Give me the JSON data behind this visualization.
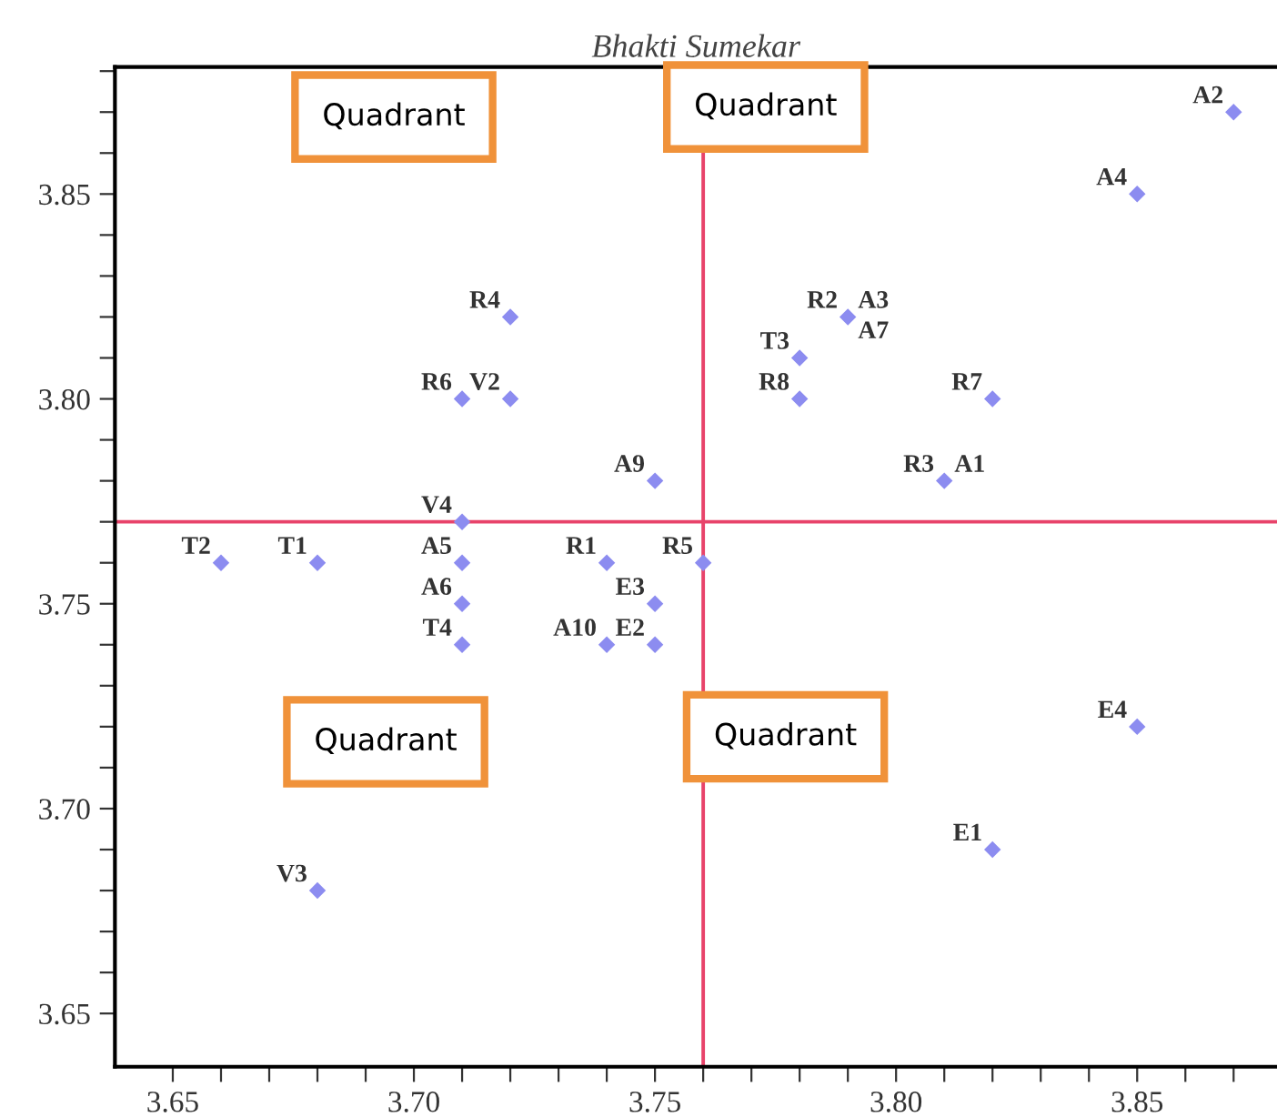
{
  "chart_data": {
    "type": "scatter",
    "title": "Bhakti Sumekar",
    "x": [
      3.66,
      3.68,
      3.71,
      3.71,
      3.71,
      3.71,
      3.71,
      3.72,
      3.72,
      3.75,
      3.74,
      3.76,
      3.75,
      3.74,
      3.75,
      3.79,
      3.78,
      3.78,
      3.82,
      3.81,
      3.82,
      3.85,
      3.68,
      3.87,
      3.85
    ],
    "series": [
      {
        "color": "#8c8cf0",
        "values": [
          3.76,
          3.76,
          3.76,
          3.75,
          3.74,
          3.77,
          3.8,
          3.8,
          3.82,
          3.78,
          3.76,
          3.76,
          3.75,
          3.74,
          3.74,
          3.82,
          3.81,
          3.8,
          3.8,
          3.78,
          3.69,
          3.72,
          3.68,
          3.87,
          3.85
        ]
      }
    ],
    "marker": "diamond",
    "xlim": [
      3.638,
      3.879
    ],
    "ylim": [
      3.637,
      3.881
    ],
    "xticks": [
      3.65,
      {
        "value": 3.66,
        "label": null
      },
      {
        "value": 3.67,
        "label": null
      },
      {
        "value": 3.68,
        "label": null
      },
      {
        "value": 3.69,
        "label": null
      },
      {
        "value": 3.7,
        "label": "3.70"
      },
      {
        "value": 3.71,
        "label": null
      },
      {
        "value": 3.72,
        "label": null
      },
      {
        "value": 3.73,
        "label": null
      },
      {
        "value": 3.74,
        "label": null
      },
      3.75,
      {
        "value": 3.76,
        "label": null
      },
      {
        "value": 3.77,
        "label": null
      },
      {
        "value": 3.78,
        "label": null
      },
      {
        "value": 3.79,
        "label": null
      },
      {
        "value": 3.8,
        "label": "3.80"
      },
      {
        "value": 3.81,
        "label": null
      },
      {
        "value": 3.82,
        "label": null
      },
      {
        "value": 3.83,
        "label": null
      },
      {
        "value": 3.84,
        "label": null
      },
      3.85,
      {
        "value": 3.86,
        "label": null
      },
      {
        "value": 3.87,
        "label": null
      }
    ],
    "yticks": [
      3.65,
      {
        "value": 3.66,
        "label": null
      },
      {
        "value": 3.67,
        "label": null
      },
      {
        "value": 3.68,
        "label": null
      },
      {
        "value": 3.69,
        "label": null
      },
      {
        "value": 3.7,
        "label": "3.70"
      },
      {
        "value": 3.71,
        "label": null
      },
      {
        "value": 3.72,
        "label": null
      },
      {
        "value": 3.73,
        "label": null
      },
      {
        "value": 3.74,
        "label": null
      },
      3.75,
      {
        "value": 3.76,
        "label": null
      },
      {
        "value": 3.77,
        "label": null
      },
      {
        "value": 3.78,
        "label": null
      },
      {
        "value": 3.79,
        "label": null
      },
      {
        "value": 3.8,
        "label": "3.80"
      },
      {
        "value": 3.81,
        "label": null
      },
      {
        "value": 3.82,
        "label": null
      },
      {
        "value": 3.83,
        "label": null
      },
      {
        "value": 3.84,
        "label": null
      },
      3.85,
      {
        "value": 3.86,
        "label": null
      },
      {
        "value": 3.87,
        "label": null
      },
      {
        "value": 3.88,
        "label": null
      }
    ],
    "ref_lines": [
      {
        "axis": "x",
        "value": 3.76,
        "color": "#e8436a"
      },
      {
        "axis": "y",
        "value": 3.77,
        "color": "#e8436a"
      }
    ],
    "grid": false,
    "annotations": [
      {
        "text": "T2",
        "x": 3.66,
        "y": 3.76
      },
      {
        "text": "T1",
        "x": 3.68,
        "y": 3.76
      },
      {
        "text": "A5",
        "x": 3.71,
        "y": 3.76
      },
      {
        "text": "A6",
        "x": 3.71,
        "y": 3.75
      },
      {
        "text": "T4",
        "x": 3.71,
        "y": 3.74
      },
      {
        "text": "V4",
        "x": 3.71,
        "y": 3.77
      },
      {
        "text": "R6",
        "x": 3.71,
        "y": 3.8
      },
      {
        "text": "V2",
        "x": 3.72,
        "y": 3.8
      },
      {
        "text": "R4",
        "x": 3.72,
        "y": 3.82
      },
      {
        "text": "A9",
        "x": 3.75,
        "y": 3.78
      },
      {
        "text": "R1",
        "x": 3.74,
        "y": 3.76
      },
      {
        "text": "R5",
        "x": 3.76,
        "y": 3.76
      },
      {
        "text": "E3",
        "x": 3.75,
        "y": 3.75
      },
      {
        "text": "A10",
        "x": 3.74,
        "y": 3.74
      },
      {
        "text": "E2",
        "x": 3.75,
        "y": 3.74
      },
      {
        "text": "R2",
        "x": 3.79,
        "y": 3.82
      },
      {
        "text": "A3",
        "x": 3.79,
        "y": 3.82
      },
      {
        "text": "A7",
        "x": 3.79,
        "y": 3.82
      },
      {
        "text": "T3",
        "x": 3.78,
        "y": 3.81
      },
      {
        "text": "R8",
        "x": 3.78,
        "y": 3.8
      },
      {
        "text": "R7",
        "x": 3.82,
        "y": 3.8
      },
      {
        "text": "R3",
        "x": 3.81,
        "y": 3.78
      },
      {
        "text": "A1",
        "x": 3.81,
        "y": 3.78
      },
      {
        "text": "E1",
        "x": 3.82,
        "y": 3.69
      },
      {
        "text": "E4",
        "x": 3.85,
        "y": 3.72
      },
      {
        "text": "V3",
        "x": 3.68,
        "y": 3.68
      },
      {
        "text": "A2",
        "x": 3.87,
        "y": 3.87
      },
      {
        "text": "A4",
        "x": 3.85,
        "y": 3.85
      },
      "Quadrant",
      "Quadrant",
      "Quadrant",
      "Quadrant"
    ]
  }
}
